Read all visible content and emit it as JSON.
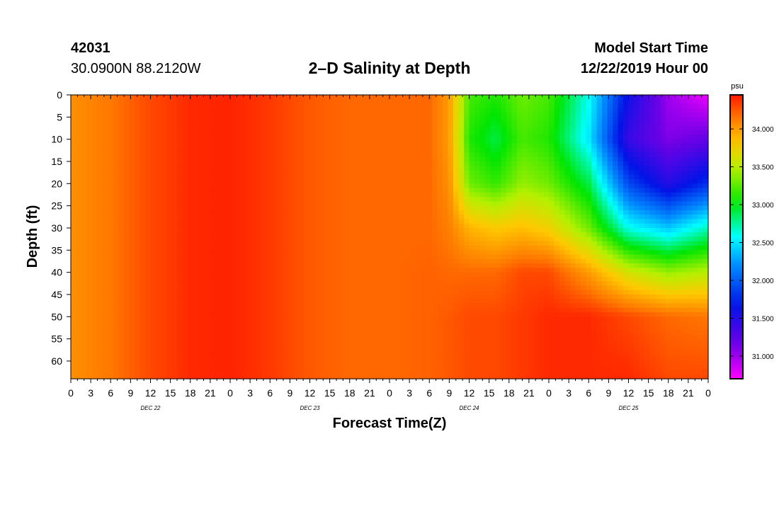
{
  "header": {
    "station_id": "42031",
    "coordinates": "30.0900N 88.2120W",
    "title": "2–D Salinity at Depth",
    "model_start_label": "Model Start Time",
    "model_start_value": "12/22/2019 Hour 00"
  },
  "chart_data": {
    "type": "heatmap",
    "title": "2–D Salinity at Depth",
    "xlabel": "Forecast Time(Z)",
    "ylabel": "Depth (ft)",
    "x_tick_labels": [
      "0",
      "3",
      "6",
      "9",
      "12",
      "15",
      "18",
      "21",
      "0",
      "3",
      "6",
      "9",
      "12",
      "15",
      "18",
      "21",
      "0",
      "3",
      "6",
      "9",
      "12",
      "15",
      "18",
      "21",
      "0",
      "3",
      "6",
      "9",
      "12",
      "15",
      "18",
      "21",
      "0"
    ],
    "date_labels": [
      "DEC 22",
      "DEC 23",
      "DEC 24",
      "DEC 25"
    ],
    "y_tick_labels": [
      "0",
      "5",
      "10",
      "15",
      "20",
      "25",
      "30",
      "35",
      "40",
      "45",
      "50",
      "55",
      "60"
    ],
    "x_range_hours": [
      0,
      96
    ],
    "y_range_ft": [
      0,
      64
    ],
    "colorbar": {
      "unit": "psu",
      "ticks": [
        "34.000",
        "33.500",
        "33.000",
        "32.500",
        "32.000",
        "31.500",
        "31.000"
      ],
      "range": [
        30.7,
        34.45
      ]
    },
    "depths_ft": [
      0,
      10,
      20,
      30,
      40,
      50,
      64
    ],
    "columns": [
      {
        "hour": 0,
        "values": [
          34.05,
          34.05,
          34.05,
          34.05,
          34.05,
          34.05,
          34.05
        ]
      },
      {
        "hour": 6,
        "values": [
          34.15,
          34.15,
          34.15,
          34.15,
          34.15,
          34.15,
          34.15
        ]
      },
      {
        "hour": 12,
        "values": [
          34.3,
          34.3,
          34.3,
          34.3,
          34.3,
          34.3,
          34.3
        ]
      },
      {
        "hour": 18,
        "values": [
          34.4,
          34.4,
          34.4,
          34.4,
          34.4,
          34.4,
          34.4
        ]
      },
      {
        "hour": 24,
        "values": [
          34.42,
          34.42,
          34.42,
          34.42,
          34.42,
          34.42,
          34.42
        ]
      },
      {
        "hour": 30,
        "values": [
          34.35,
          34.35,
          34.35,
          34.35,
          34.35,
          34.35,
          34.35
        ]
      },
      {
        "hour": 36,
        "values": [
          34.25,
          34.25,
          34.25,
          34.25,
          34.25,
          34.25,
          34.25
        ]
      },
      {
        "hour": 42,
        "values": [
          34.2,
          34.2,
          34.2,
          34.2,
          34.2,
          34.2,
          34.2
        ]
      },
      {
        "hour": 48,
        "values": [
          34.2,
          34.2,
          34.2,
          34.2,
          34.2,
          34.2,
          34.2
        ]
      },
      {
        "hour": 54,
        "values": [
          34.2,
          34.2,
          34.2,
          34.2,
          34.22,
          34.22,
          34.22
        ]
      },
      {
        "hour": 57,
        "values": [
          34.0,
          34.0,
          34.05,
          34.12,
          34.2,
          34.25,
          34.25
        ]
      },
      {
        "hour": 60,
        "values": [
          33.2,
          33.1,
          33.3,
          33.9,
          34.2,
          34.3,
          34.3
        ]
      },
      {
        "hour": 64,
        "values": [
          33.1,
          32.9,
          33.15,
          33.8,
          34.2,
          34.3,
          34.3
        ]
      },
      {
        "hour": 68,
        "values": [
          33.3,
          33.2,
          33.4,
          33.85,
          34.3,
          34.35,
          34.35
        ]
      },
      {
        "hour": 72,
        "values": [
          33.2,
          33.1,
          33.3,
          33.75,
          34.3,
          34.4,
          34.4
        ]
      },
      {
        "hour": 78,
        "values": [
          32.6,
          32.5,
          32.9,
          33.3,
          34.0,
          34.4,
          34.4
        ]
      },
      {
        "hour": 84,
        "values": [
          31.6,
          31.4,
          31.9,
          32.6,
          33.6,
          34.3,
          34.4
        ]
      },
      {
        "hour": 90,
        "values": [
          31.0,
          31.1,
          31.5,
          32.4,
          33.4,
          34.2,
          34.3
        ]
      },
      {
        "hour": 96,
        "values": [
          30.75,
          31.2,
          31.8,
          32.7,
          33.5,
          34.15,
          34.3
        ]
      }
    ]
  }
}
